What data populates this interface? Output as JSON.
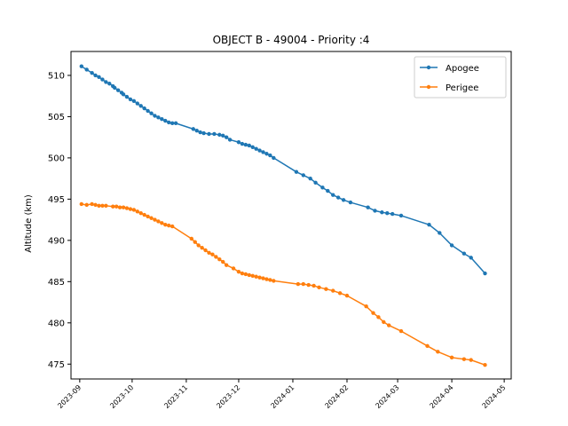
{
  "chart_data": {
    "type": "line",
    "title": "OBJECT B - 49004 - Priority :4",
    "xlabel": "",
    "ylabel": "Altitude (km)",
    "xlim": [
      "2023-08-27",
      "2024-05-05"
    ],
    "ylim": [
      473.2,
      512.9
    ],
    "x_ticks": [
      "2023-09",
      "2023-10",
      "2023-11",
      "2023-12",
      "2024-01",
      "2024-02",
      "2024-03",
      "2024-04",
      "2024-05"
    ],
    "y_ticks": [
      475,
      480,
      485,
      490,
      495,
      500,
      505,
      510
    ],
    "legend_position": "upper right",
    "grid": false,
    "series": [
      {
        "name": "Apogee",
        "color": "#1f77b4",
        "points": [
          [
            "2023-09-02",
            511.1
          ],
          [
            "2023-09-05",
            510.7
          ],
          [
            "2023-09-08",
            510.3
          ],
          [
            "2023-09-10",
            510.0
          ],
          [
            "2023-09-12",
            509.8
          ],
          [
            "2023-09-14",
            509.5
          ],
          [
            "2023-09-16",
            509.2
          ],
          [
            "2023-09-18",
            509.0
          ],
          [
            "2023-09-20",
            508.7
          ],
          [
            "2023-09-21",
            508.5
          ],
          [
            "2023-09-23",
            508.2
          ],
          [
            "2023-09-25",
            507.9
          ],
          [
            "2023-09-26",
            507.7
          ],
          [
            "2023-09-28",
            507.4
          ],
          [
            "2023-09-30",
            507.1
          ],
          [
            "2023-10-02",
            506.9
          ],
          [
            "2023-10-04",
            506.6
          ],
          [
            "2023-10-06",
            506.3
          ],
          [
            "2023-10-08",
            506.0
          ],
          [
            "2023-10-10",
            505.7
          ],
          [
            "2023-10-12",
            505.4
          ],
          [
            "2023-10-14",
            505.1
          ],
          [
            "2023-10-16",
            504.9
          ],
          [
            "2023-10-18",
            504.7
          ],
          [
            "2023-10-20",
            504.5
          ],
          [
            "2023-10-22",
            504.3
          ],
          [
            "2023-10-24",
            504.2
          ],
          [
            "2023-10-26",
            504.2
          ],
          [
            "2023-11-05",
            503.5
          ],
          [
            "2023-11-07",
            503.3
          ],
          [
            "2023-11-09",
            503.1
          ],
          [
            "2023-11-11",
            503.0
          ],
          [
            "2023-11-14",
            502.9
          ],
          [
            "2023-11-17",
            502.9
          ],
          [
            "2023-11-20",
            502.8
          ],
          [
            "2023-11-22",
            502.7
          ],
          [
            "2023-11-24",
            502.5
          ],
          [
            "2023-11-26",
            502.2
          ],
          [
            "2023-12-01",
            501.9
          ],
          [
            "2023-12-03",
            501.7
          ],
          [
            "2023-12-05",
            501.6
          ],
          [
            "2023-12-07",
            501.5
          ],
          [
            "2023-12-09",
            501.3
          ],
          [
            "2023-12-11",
            501.1
          ],
          [
            "2023-12-13",
            500.9
          ],
          [
            "2023-12-15",
            500.7
          ],
          [
            "2023-12-17",
            500.5
          ],
          [
            "2023-12-19",
            500.3
          ],
          [
            "2023-12-21",
            500.0
          ],
          [
            "2024-01-03",
            498.3
          ],
          [
            "2024-01-07",
            497.9
          ],
          [
            "2024-01-11",
            497.5
          ],
          [
            "2024-01-14",
            497.0
          ],
          [
            "2024-01-18",
            496.4
          ],
          [
            "2024-01-21",
            496.0
          ],
          [
            "2024-01-24",
            495.5
          ],
          [
            "2024-01-27",
            495.2
          ],
          [
            "2024-01-30",
            494.9
          ],
          [
            "2024-02-03",
            494.6
          ],
          [
            "2024-02-13",
            494.0
          ],
          [
            "2024-02-17",
            493.6
          ],
          [
            "2024-02-21",
            493.4
          ],
          [
            "2024-02-24",
            493.3
          ],
          [
            "2024-02-27",
            493.2
          ],
          [
            "2024-03-03",
            493.0
          ],
          [
            "2024-03-19",
            491.9
          ],
          [
            "2024-03-25",
            490.9
          ],
          [
            "2024-04-01",
            489.4
          ],
          [
            "2024-04-08",
            488.4
          ],
          [
            "2024-04-12",
            487.9
          ],
          [
            "2024-04-20",
            486.0
          ]
        ]
      },
      {
        "name": "Perigee",
        "color": "#ff7f0e",
        "points": [
          [
            "2023-09-02",
            494.4
          ],
          [
            "2023-09-05",
            494.3
          ],
          [
            "2023-09-08",
            494.4
          ],
          [
            "2023-09-10",
            494.3
          ],
          [
            "2023-09-12",
            494.2
          ],
          [
            "2023-09-14",
            494.2
          ],
          [
            "2023-09-16",
            494.2
          ],
          [
            "2023-09-20",
            494.1
          ],
          [
            "2023-09-22",
            494.1
          ],
          [
            "2023-09-24",
            494.0
          ],
          [
            "2023-09-26",
            494.0
          ],
          [
            "2023-09-28",
            493.9
          ],
          [
            "2023-09-30",
            493.8
          ],
          [
            "2023-10-02",
            493.7
          ],
          [
            "2023-10-04",
            493.5
          ],
          [
            "2023-10-06",
            493.3
          ],
          [
            "2023-10-08",
            493.1
          ],
          [
            "2023-10-10",
            492.9
          ],
          [
            "2023-10-12",
            492.7
          ],
          [
            "2023-10-14",
            492.5
          ],
          [
            "2023-10-16",
            492.3
          ],
          [
            "2023-10-18",
            492.1
          ],
          [
            "2023-10-20",
            491.9
          ],
          [
            "2023-10-22",
            491.8
          ],
          [
            "2023-10-24",
            491.7
          ],
          [
            "2023-11-04",
            490.2
          ],
          [
            "2023-11-06",
            489.8
          ],
          [
            "2023-11-08",
            489.4
          ],
          [
            "2023-11-10",
            489.1
          ],
          [
            "2023-11-12",
            488.8
          ],
          [
            "2023-11-14",
            488.5
          ],
          [
            "2023-11-16",
            488.3
          ],
          [
            "2023-11-18",
            488.0
          ],
          [
            "2023-11-20",
            487.7
          ],
          [
            "2023-11-22",
            487.4
          ],
          [
            "2023-11-24",
            487.0
          ],
          [
            "2023-11-28",
            486.6
          ],
          [
            "2023-12-01",
            486.2
          ],
          [
            "2023-12-03",
            486.0
          ],
          [
            "2023-12-05",
            485.9
          ],
          [
            "2023-12-07",
            485.8
          ],
          [
            "2023-12-09",
            485.7
          ],
          [
            "2023-12-11",
            485.6
          ],
          [
            "2023-12-13",
            485.5
          ],
          [
            "2023-12-15",
            485.4
          ],
          [
            "2023-12-17",
            485.3
          ],
          [
            "2023-12-19",
            485.2
          ],
          [
            "2023-12-21",
            485.1
          ],
          [
            "2024-01-04",
            484.7
          ],
          [
            "2024-01-07",
            484.7
          ],
          [
            "2024-01-10",
            484.6
          ],
          [
            "2024-01-13",
            484.5
          ],
          [
            "2024-01-16",
            484.3
          ],
          [
            "2024-01-20",
            484.1
          ],
          [
            "2024-01-24",
            483.9
          ],
          [
            "2024-01-28",
            483.6
          ],
          [
            "2024-02-01",
            483.3
          ],
          [
            "2024-02-12",
            482.0
          ],
          [
            "2024-02-16",
            481.2
          ],
          [
            "2024-02-19",
            480.7
          ],
          [
            "2024-02-22",
            480.1
          ],
          [
            "2024-02-25",
            479.7
          ],
          [
            "2024-03-03",
            479.0
          ],
          [
            "2024-03-18",
            477.2
          ],
          [
            "2024-03-24",
            476.5
          ],
          [
            "2024-04-01",
            475.8
          ],
          [
            "2024-04-08",
            475.6
          ],
          [
            "2024-04-12",
            475.5
          ],
          [
            "2024-04-20",
            474.9
          ]
        ]
      }
    ]
  }
}
